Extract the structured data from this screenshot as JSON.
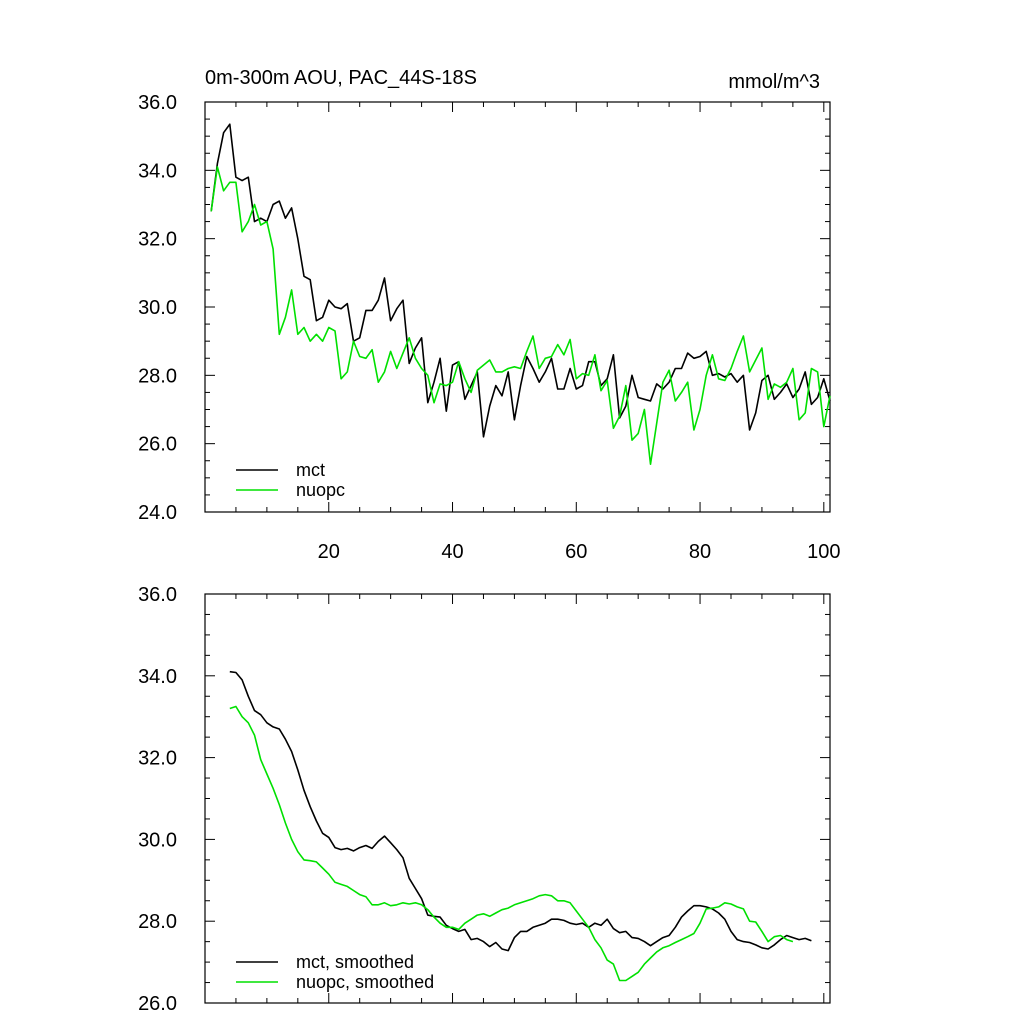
{
  "chart_data": [
    {
      "type": "line",
      "title": "0m-300m AOU, PAC_44S-18S",
      "units": "mmol/m^3",
      "xlim": [
        0,
        101
      ],
      "ylim": [
        24.0,
        36.0
      ],
      "xticks": [
        20,
        40,
        60,
        80,
        100
      ],
      "xtick_labels": [
        "20",
        "40",
        "60",
        "80",
        "100"
      ],
      "yticks": [
        24.0,
        26.0,
        28.0,
        30.0,
        32.0,
        34.0,
        36.0
      ],
      "ytick_labels": [
        "24.0",
        "26.0",
        "28.0",
        "30.0",
        "32.0",
        "34.0",
        "36.0"
      ],
      "legend_position": "lower-left",
      "x_start": 1,
      "series": [
        {
          "name": "mct",
          "color": "#000000",
          "values": [
            32.8,
            34.2,
            35.1,
            35.35,
            33.8,
            33.7,
            33.8,
            32.5,
            32.6,
            32.5,
            33.0,
            33.1,
            32.6,
            32.9,
            32.0,
            30.9,
            30.8,
            29.6,
            29.7,
            30.2,
            30.0,
            29.95,
            30.1,
            29.0,
            29.1,
            29.9,
            29.9,
            30.2,
            30.85,
            29.6,
            29.95,
            30.2,
            28.35,
            28.8,
            29.1,
            27.2,
            27.8,
            28.5,
            26.95,
            28.3,
            28.4,
            27.3,
            27.7,
            28.1,
            26.2,
            27.1,
            27.7,
            27.4,
            28.1,
            26.7,
            27.7,
            28.55,
            28.2,
            27.8,
            28.1,
            28.5,
            27.6,
            27.6,
            28.2,
            27.6,
            27.7,
            28.4,
            28.4,
            27.7,
            27.9,
            28.6,
            26.75,
            27.1,
            28.0,
            27.35,
            27.3,
            27.25,
            27.75,
            27.6,
            27.8,
            28.2,
            28.2,
            28.65,
            28.5,
            28.55,
            28.7,
            28.0,
            28.05,
            27.95,
            28.05,
            27.8,
            28.0,
            26.4,
            26.9,
            27.85,
            28.0,
            27.3,
            27.5,
            27.75,
            27.35,
            27.6,
            28.1,
            27.15,
            27.35,
            27.9,
            27.25
          ]
        },
        {
          "name": "nuopc",
          "color": "#00e000",
          "values": [
            32.8,
            34.1,
            33.4,
            33.65,
            33.65,
            32.2,
            32.5,
            33.0,
            32.4,
            32.5,
            31.7,
            29.2,
            29.7,
            30.5,
            29.2,
            29.4,
            29.0,
            29.2,
            29.0,
            29.4,
            29.3,
            27.9,
            28.1,
            29.0,
            28.55,
            28.5,
            28.75,
            27.8,
            28.1,
            28.7,
            28.2,
            28.65,
            29.1,
            28.5,
            28.2,
            28.0,
            27.2,
            27.75,
            27.7,
            27.8,
            28.4,
            27.9,
            27.5,
            28.15,
            28.3,
            28.45,
            28.1,
            28.1,
            28.2,
            28.25,
            28.2,
            28.7,
            29.15,
            28.2,
            28.5,
            28.55,
            28.9,
            28.6,
            29.05,
            27.9,
            28.05,
            28.0,
            28.6,
            27.55,
            27.85,
            26.45,
            26.8,
            27.7,
            26.1,
            26.3,
            27.0,
            25.4,
            26.6,
            27.8,
            28.15,
            27.25,
            27.5,
            27.8,
            26.4,
            27.0,
            28.0,
            28.6,
            27.9,
            27.85,
            28.2,
            28.7,
            29.15,
            28.1,
            28.45,
            28.8,
            27.3,
            27.75,
            27.65,
            27.8,
            28.2,
            26.7,
            26.9,
            28.2,
            28.1,
            26.5,
            27.4
          ]
        }
      ]
    },
    {
      "type": "line",
      "xlim": [
        0,
        101
      ],
      "ylim": [
        26.0,
        36.0
      ],
      "xticks": [
        20,
        40,
        60,
        80,
        100
      ],
      "yticks": [
        26.0,
        28.0,
        30.0,
        32.0,
        34.0,
        36.0
      ],
      "ytick_labels": [
        "26.0",
        "28.0",
        "30.0",
        "32.0",
        "34.0",
        "36.0"
      ],
      "legend_position": "lower-left",
      "x_start": 4,
      "series": [
        {
          "name": "mct, smoothed",
          "color": "#000000",
          "values": [
            34.1,
            34.08,
            33.9,
            33.5,
            33.15,
            33.05,
            32.85,
            32.75,
            32.7,
            32.45,
            32.15,
            31.7,
            31.2,
            30.8,
            30.45,
            30.15,
            30.05,
            29.8,
            29.75,
            29.78,
            29.72,
            29.8,
            29.85,
            29.78,
            29.95,
            30.08,
            29.92,
            29.75,
            29.55,
            29.05,
            28.8,
            28.55,
            28.15,
            28.12,
            28.1,
            27.9,
            27.82,
            27.75,
            27.8,
            27.55,
            27.58,
            27.5,
            27.38,
            27.48,
            27.32,
            27.28,
            27.6,
            27.75,
            27.75,
            27.85,
            27.9,
            27.95,
            28.05,
            28.05,
            28.02,
            27.95,
            27.92,
            27.95,
            27.85,
            27.95,
            27.9,
            28.05,
            27.82,
            27.72,
            27.75,
            27.6,
            27.58,
            27.5,
            27.4,
            27.5,
            27.6,
            27.65,
            27.85,
            28.1,
            28.25,
            28.38,
            28.38,
            28.35,
            28.3,
            28.2,
            28.05,
            27.75,
            27.55,
            27.5,
            27.48,
            27.42,
            27.35,
            27.32,
            27.42,
            27.55,
            27.65,
            27.6,
            27.55,
            27.58,
            27.52
          ]
        },
        {
          "name": "nuopc, smoothed",
          "color": "#00e000",
          "values": [
            33.2,
            33.25,
            33.0,
            32.85,
            32.55,
            31.95,
            31.6,
            31.25,
            30.85,
            30.4,
            30.0,
            29.7,
            29.5,
            29.48,
            29.45,
            29.3,
            29.15,
            28.95,
            28.9,
            28.85,
            28.75,
            28.65,
            28.6,
            28.4,
            28.4,
            28.45,
            28.38,
            28.4,
            28.45,
            28.42,
            28.45,
            28.4,
            28.28,
            28.1,
            27.95,
            27.85,
            27.85,
            27.8,
            27.95,
            28.05,
            28.15,
            28.18,
            28.12,
            28.2,
            28.28,
            28.32,
            28.4,
            28.45,
            28.5,
            28.55,
            28.62,
            28.65,
            28.62,
            28.5,
            28.5,
            28.45,
            28.25,
            28.05,
            27.85,
            27.55,
            27.35,
            27.05,
            26.95,
            26.55,
            26.55,
            26.65,
            26.75,
            26.95,
            27.1,
            27.25,
            27.35,
            27.4,
            27.48,
            27.55,
            27.62,
            27.7,
            27.95,
            28.3,
            28.32,
            28.35,
            28.45,
            28.42,
            28.35,
            28.3,
            28.0,
            27.98,
            27.75,
            27.5,
            27.62,
            27.65,
            27.55,
            27.5
          ]
        }
      ]
    }
  ]
}
